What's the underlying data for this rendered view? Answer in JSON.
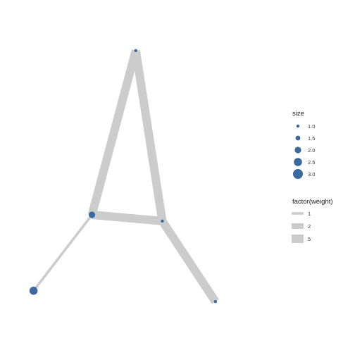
{
  "chart_data": {
    "type": "network",
    "colors": {
      "edge": "#cccccc",
      "node": "#3b6aa0",
      "background": "#ffffff"
    },
    "nodes": [
      {
        "id": "a",
        "x": 0.445,
        "y": 0.905,
        "size": 1.0
      },
      {
        "id": "b",
        "x": 0.28,
        "y": 0.375,
        "size": 2.0
      },
      {
        "id": "c",
        "x": 0.545,
        "y": 0.355,
        "size": 1.0
      },
      {
        "id": "d",
        "x": 0.745,
        "y": 0.095,
        "size": 1.0
      },
      {
        "id": "e",
        "x": 0.06,
        "y": 0.13,
        "size": 2.5
      }
    ],
    "edges": [
      {
        "from": "a",
        "to": "b",
        "weight": 5
      },
      {
        "from": "a",
        "to": "c",
        "weight": 5
      },
      {
        "from": "b",
        "to": "c",
        "weight": 5
      },
      {
        "from": "c",
        "to": "d",
        "weight": 5
      },
      {
        "from": "b",
        "to": "e",
        "weight": 1
      }
    ],
    "size_legend": {
      "title": "size",
      "entries": [
        "1.0",
        "1.5",
        "2.0",
        "2.5",
        "3.0"
      ]
    },
    "weight_legend": {
      "title": "factor(weight)",
      "entries": [
        "1",
        "2",
        "5"
      ]
    },
    "legend_position": "right"
  }
}
